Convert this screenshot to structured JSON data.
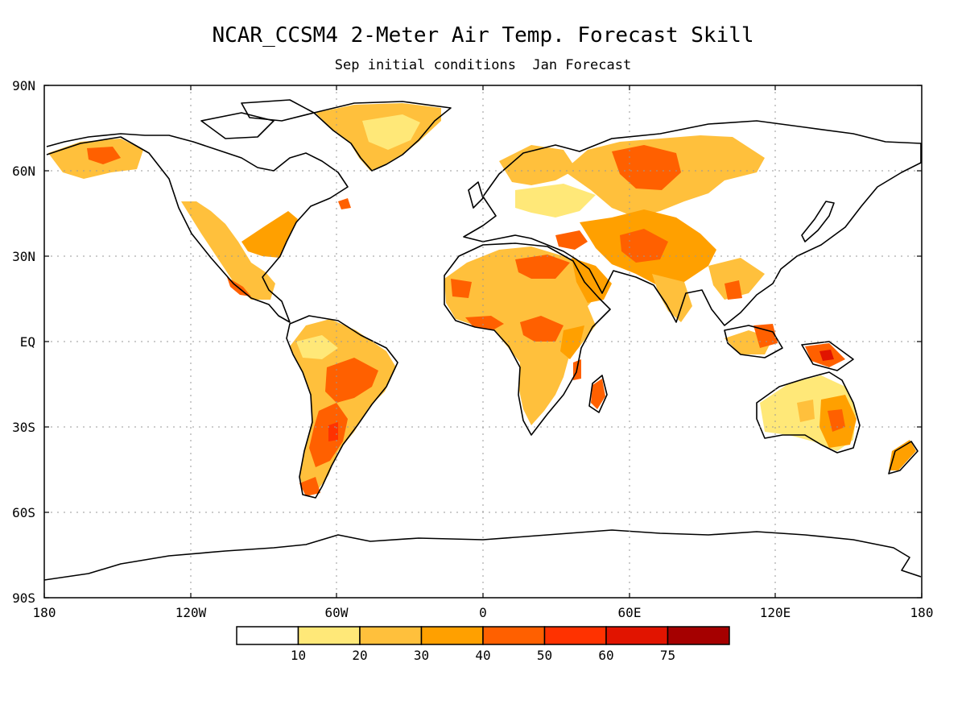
{
  "title": "NCAR_CCSM4 2-Meter Air Temp. Forecast Skill",
  "subtitle": "Sep initial conditions  Jan Forecast",
  "axes": {
    "lat_labels": [
      "90N",
      "60N",
      "30N",
      "EQ",
      "30S",
      "60S",
      "90S"
    ],
    "lon_labels": [
      "180",
      "120W",
      "60W",
      "0",
      "60E",
      "120E",
      "180"
    ]
  },
  "colorbar": {
    "colors": [
      "#ffffff",
      "#ffe878",
      "#ffc03c",
      "#ffa000",
      "#ff6000",
      "#ff3200",
      "#e11400",
      "#a50000"
    ],
    "ticks": [
      "10",
      "20",
      "30",
      "40",
      "50",
      "60",
      "75"
    ]
  },
  "map_features": {
    "grid_lines": "dotted",
    "coastlines": true
  }
}
